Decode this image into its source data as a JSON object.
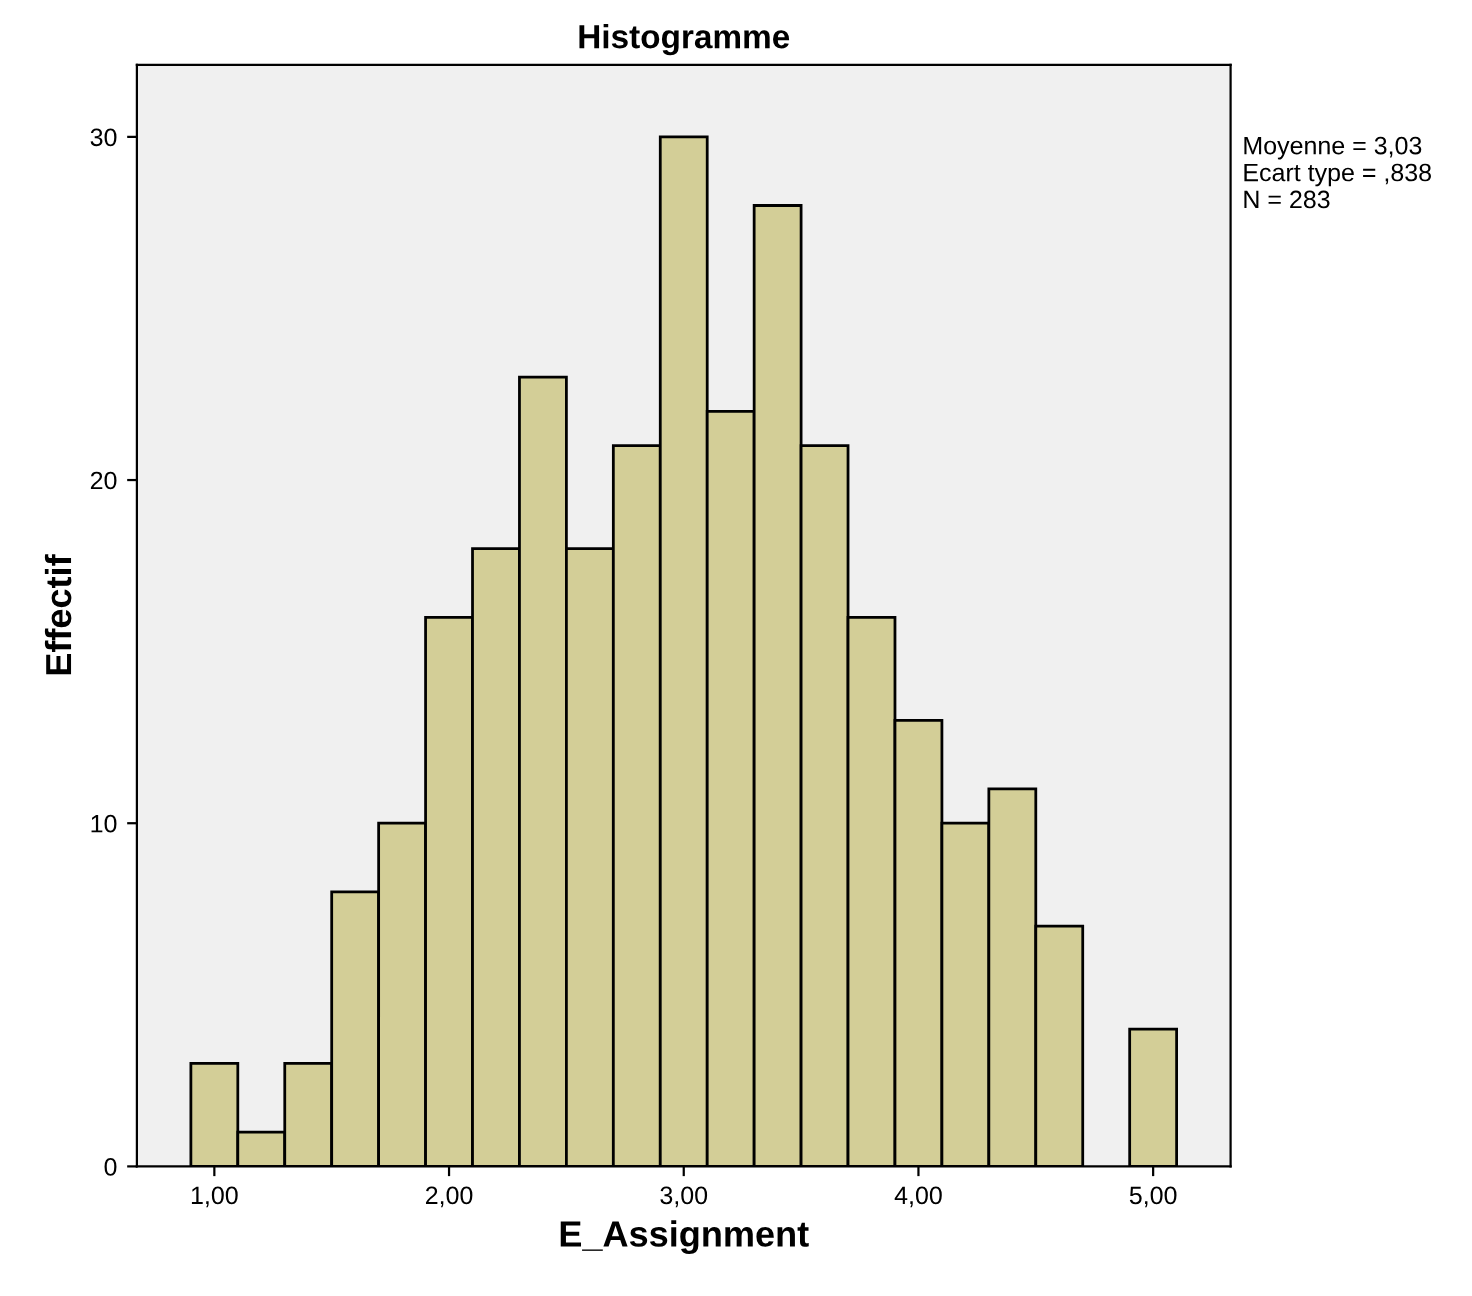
{
  "chart_data": {
    "type": "histogram",
    "title": "Histogramme",
    "xlabel": "E_Assignment",
    "ylabel": "Effectif",
    "bins": [
      0.9,
      1.1,
      1.3,
      1.5,
      1.7,
      1.9,
      2.1,
      2.3,
      2.5,
      2.7,
      2.9,
      3.1,
      3.3,
      3.5,
      3.7,
      3.9,
      4.1,
      4.3,
      4.5,
      4.7,
      4.9,
      5.1
    ],
    "values": [
      3,
      1,
      3,
      8,
      10,
      16,
      18,
      23,
      18,
      21,
      30,
      22,
      28,
      21,
      16,
      13,
      10,
      11,
      7,
      0,
      4
    ],
    "color": "#d3ce97",
    "xlim": [
      0.67,
      5.33
    ],
    "ylim": [
      0,
      32.1
    ],
    "xticks": [
      {
        "value": 1,
        "label": "1,00"
      },
      {
        "value": 2,
        "label": "2,00"
      },
      {
        "value": 3,
        "label": "3,00"
      },
      {
        "value": 4,
        "label": "4,00"
      },
      {
        "value": 5,
        "label": "5,00"
      }
    ],
    "yticks": [
      0,
      10,
      20,
      30
    ],
    "annotations": [
      "Moyenne = 3,03\nEcart type = ,838\nN = 283"
    ],
    "grid": false
  }
}
